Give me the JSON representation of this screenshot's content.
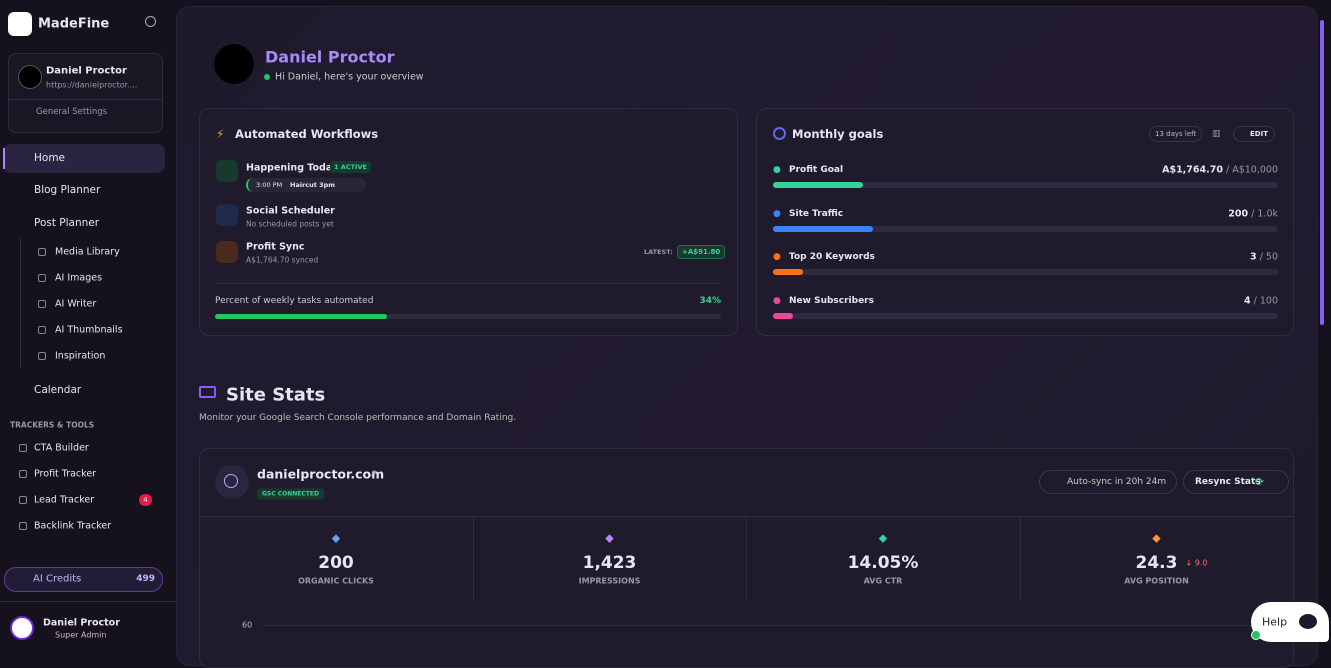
{
  "sidebar": {
    "brand": "MadeFine",
    "account": {
      "name": "Daniel Proctor",
      "url": "https://danielproctor....",
      "settings": "General Settings"
    },
    "nav": [
      "Home",
      "Blog Planner",
      "Post Planner"
    ],
    "sub": [
      "Media Library",
      "AI Images",
      "AI Writer",
      "AI Thumbnails",
      "Inspiration"
    ],
    "calendar": "Calendar",
    "section": "TRACKERS & TOOLS",
    "tools": [
      "CTA Builder",
      "Profit Tracker",
      "Lead Tracker",
      "Backlink Tracker"
    ],
    "lead_badge": "4",
    "credits": {
      "label": "AI Credits",
      "value": "499"
    },
    "user": {
      "name": "Daniel Proctor",
      "role": "Super Admin"
    }
  },
  "header": {
    "name": "Daniel Proctor",
    "greeting": "Hi Daniel, here's your overview"
  },
  "workflows": {
    "title": "Automated Workflows",
    "items": [
      {
        "title": "Happening Today",
        "badge": "1 ACTIVE",
        "time": "3:00 PM",
        "event": "Haircut 3pm"
      },
      {
        "title": "Social Scheduler",
        "sub": "No scheduled posts yet"
      },
      {
        "title": "Profit Sync",
        "sub": "A$1,764.70 synced",
        "latest": "LATEST:",
        "amount": "+A$91.80"
      }
    ],
    "progress_label": "Percent of weekly tasks automated",
    "progress": "34%"
  },
  "goals": {
    "title": "Monthly goals",
    "days": "13 days left",
    "edit": "EDIT",
    "rows": [
      {
        "label": "Profit Goal",
        "value": "A$1,764.70",
        "target": "/ A$10,000"
      },
      {
        "label": "Site Traffic",
        "value": "200",
        "target": "/ 1.0k"
      },
      {
        "label": "Top 20 Keywords",
        "value": "3",
        "target": "/ 50"
      },
      {
        "label": "New Subscribers",
        "value": "4",
        "target": "/ 100"
      }
    ]
  },
  "site_stats": {
    "title": "Site Stats",
    "description": "Monitor your Google Search Console performance and Domain Rating.",
    "domain": "danielproctor.com",
    "status": "GSC CONNECTED",
    "autosync": "Auto-sync in 20h 24m",
    "resync": "Resync Stats",
    "stats": [
      {
        "value": "200",
        "label": "ORGANIC CLICKS"
      },
      {
        "value": "1,423",
        "label": "IMPRESSIONS"
      },
      {
        "value": "14.05%",
        "label": "AVG CTR"
      },
      {
        "value": "24.3",
        "label": "AVG POSITION",
        "change": "↓ 9.0"
      }
    ],
    "axis_top": "60"
  },
  "help": "Help"
}
